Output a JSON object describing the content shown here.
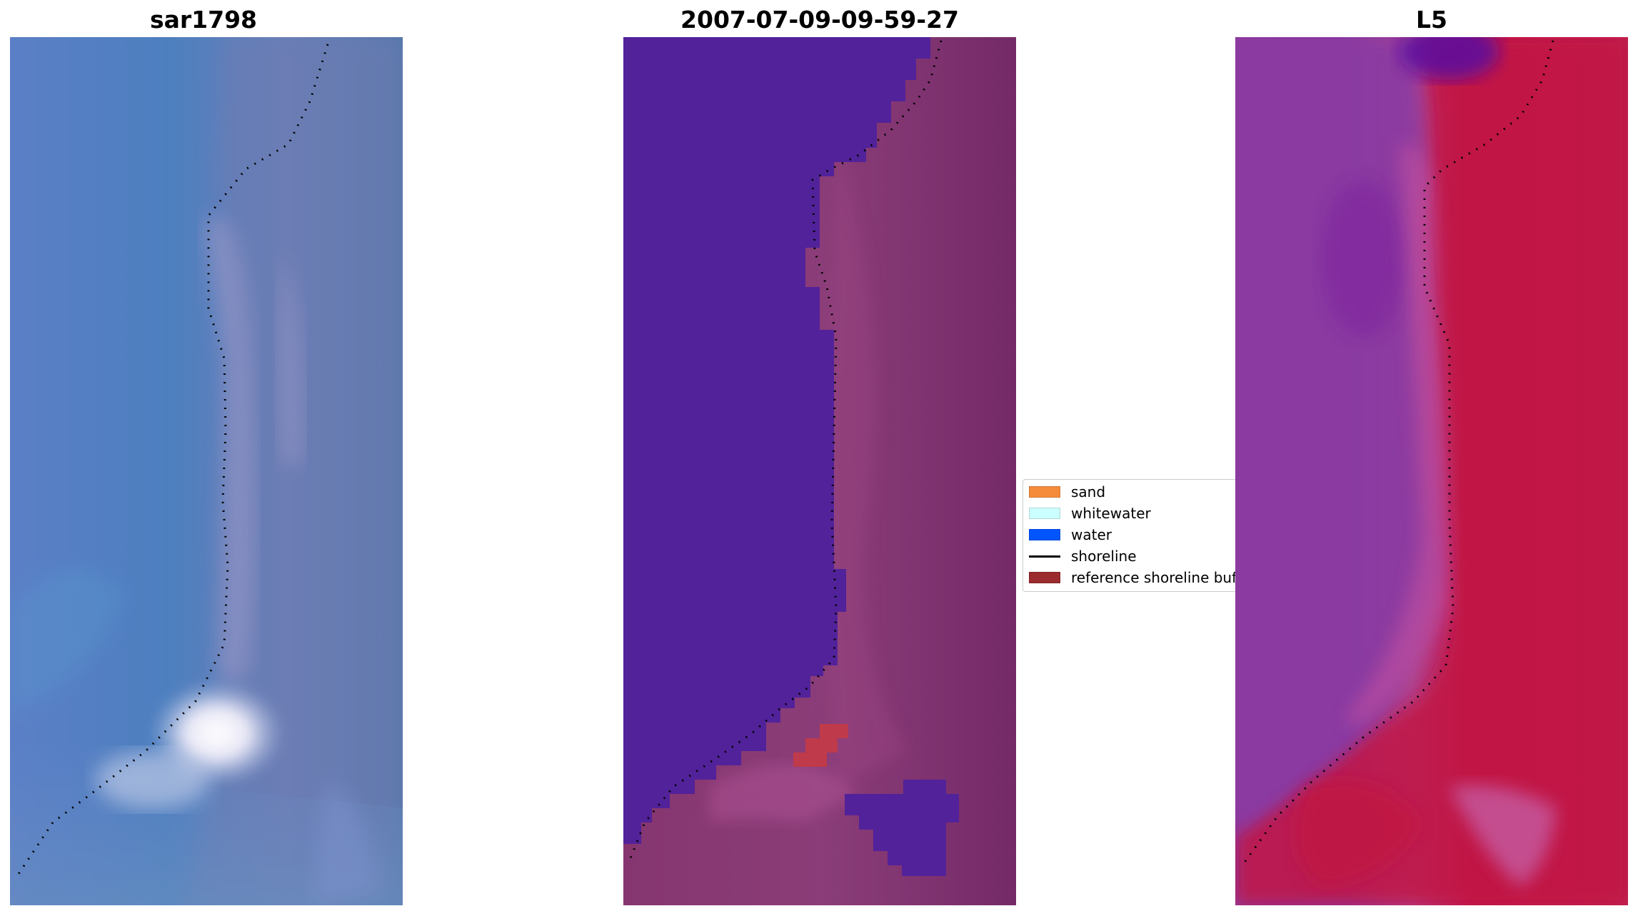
{
  "panels": [
    {
      "title": "sar1798"
    },
    {
      "title": "2007-07-09-09-59-27"
    },
    {
      "title": "L5"
    }
  ],
  "legend": {
    "items": [
      {
        "label": "sand",
        "kind": "patch",
        "color": "#f58c3c"
      },
      {
        "label": "whitewater",
        "kind": "patch",
        "color": "#ccffff"
      },
      {
        "label": "water",
        "kind": "patch",
        "color": "#0055ff"
      },
      {
        "label": "shoreline",
        "kind": "line",
        "color": "#000000"
      },
      {
        "label": "reference shoreline buffer",
        "kind": "patch",
        "color": "#9a2b2e"
      }
    ]
  },
  "colors": {
    "rgb_water": "#5a84c0",
    "rgb_water_dark": "#4a72b2",
    "rgb_sand": "#8c98c4",
    "rgb_whitewater": "#f4f2fa",
    "class_water": "#52229a",
    "class_land": "#80336e",
    "class_buffer": "#bf3a4a",
    "index_low": "#8a3aa0",
    "index_high": "#c21240"
  }
}
